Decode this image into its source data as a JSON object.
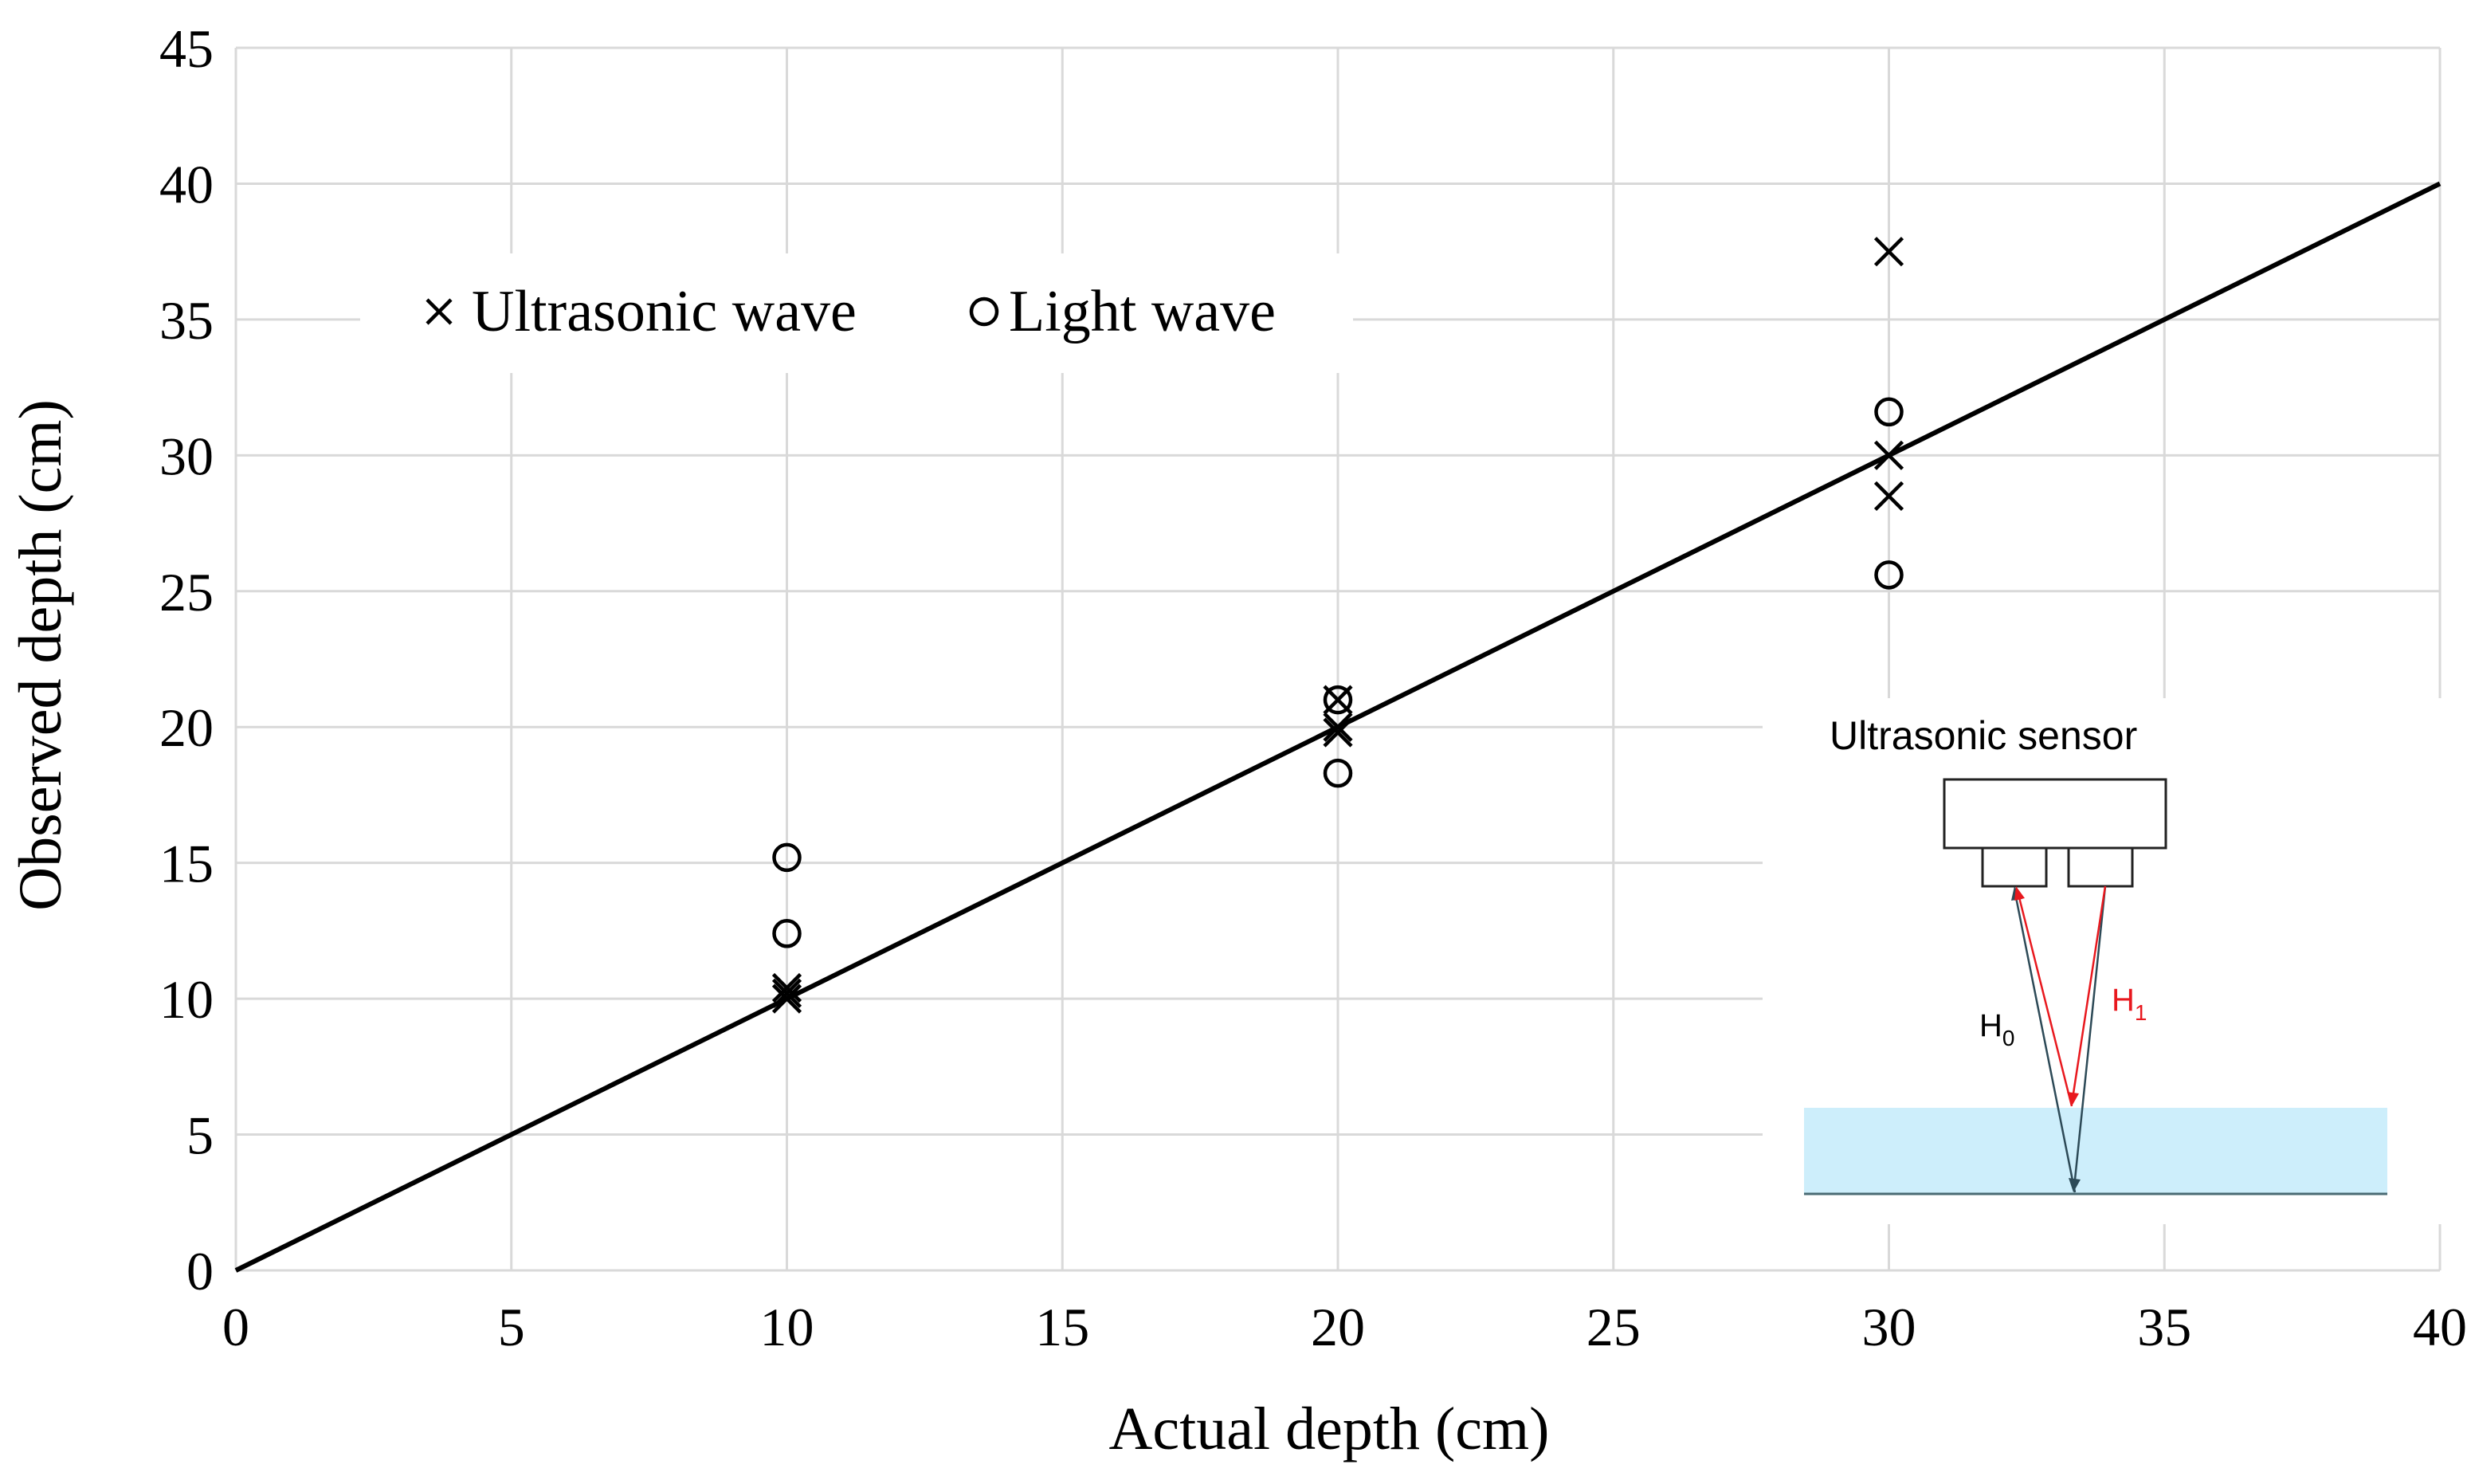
{
  "chart_data": {
    "type": "scatter",
    "title": "",
    "xlabel": "Actual depth (cm)",
    "ylabel": "Observed depth (cm)",
    "xlim": [
      0,
      40
    ],
    "ylim": [
      0,
      45
    ],
    "xticks": [
      0,
      5,
      10,
      15,
      20,
      25,
      30,
      35,
      40
    ],
    "yticks": [
      0,
      5,
      10,
      15,
      20,
      25,
      30,
      35,
      40,
      45
    ],
    "grid": true,
    "legend_position": "upper-left",
    "series": [
      {
        "name": "Ultrasonic wave",
        "marker": "x",
        "x": [
          10,
          10,
          10,
          20,
          20,
          20,
          30,
          30,
          30
        ],
        "y": [
          10.0,
          10.2,
          10.4,
          19.8,
          20.0,
          21.0,
          28.5,
          30.0,
          37.5
        ]
      },
      {
        "name": "Light wave",
        "marker": "o",
        "x": [
          10,
          10,
          20,
          20,
          30,
          30
        ],
        "y": [
          12.4,
          15.2,
          18.3,
          21.0,
          25.6,
          31.6
        ]
      }
    ],
    "reference_line": {
      "name": "y = x",
      "x": [
        0,
        40
      ],
      "y": [
        0,
        40
      ]
    },
    "inset": {
      "title": "Ultrasonic sensor",
      "labels": {
        "h0_main": "H",
        "h0_sub": "0",
        "h1_main": "H",
        "h1_sub": "1"
      },
      "colors": {
        "h0": "#2d4a57",
        "h1": "#e8181e",
        "water": "#cdeefb",
        "outline": "#222222"
      }
    }
  }
}
